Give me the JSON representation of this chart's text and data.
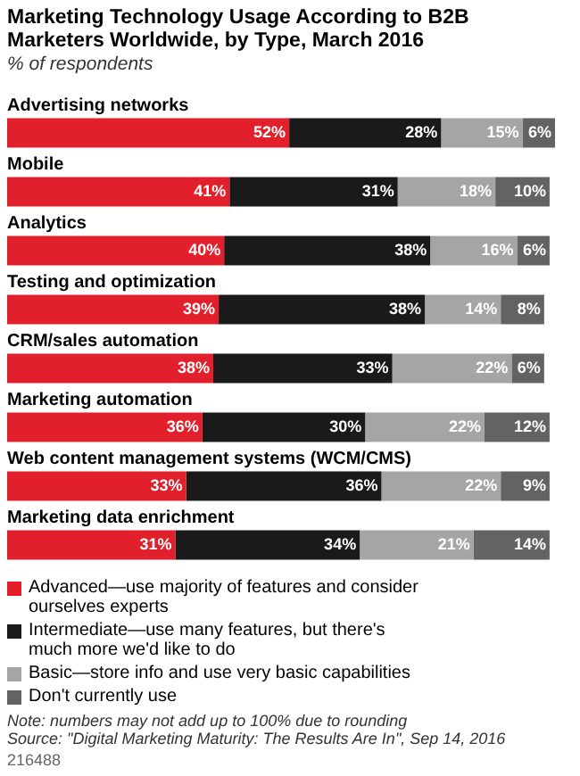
{
  "chart_data": {
    "type": "bar",
    "orientation": "horizontal",
    "stacked": true,
    "title": "Marketing Technology Usage According to B2B Marketers Worldwide, by Type, March 2016",
    "subtitle": "% of respondents",
    "categories": [
      "Advertising networks",
      "Mobile",
      "Analytics",
      "Testing and optimization",
      "CRM/sales automation",
      "Marketing automation",
      "Web content management systems (WCM/CMS)",
      "Marketing data enrichment"
    ],
    "series": [
      {
        "name": "Advanced—use majority of features and consider ourselves experts",
        "color": "#e2202c",
        "values": [
          52,
          41,
          40,
          39,
          38,
          36,
          33,
          31
        ],
        "value_labels": [
          "52%",
          "41%",
          "40%",
          "39%",
          "38%",
          "36%",
          "33%",
          "31%"
        ]
      },
      {
        "name": "Intermediate—use many features, but there's much more we'd like to do",
        "color": "#1a1a1a",
        "values": [
          28,
          31,
          38,
          38,
          33,
          30,
          36,
          34
        ],
        "value_labels": [
          "28%",
          "31%",
          "38%",
          "38%",
          "33%",
          "30%",
          "36%",
          "34%"
        ]
      },
      {
        "name": "Basic—store info and use very basic capabilities",
        "color": "#a5a5a5",
        "values": [
          15,
          18,
          16,
          14,
          22,
          22,
          22,
          21
        ],
        "value_labels": [
          "15%",
          "18%",
          "16%",
          "14%",
          "22%",
          "22%",
          "22%",
          "21%"
        ]
      },
      {
        "name": "Don't currently use",
        "color": "#636363",
        "values": [
          6,
          10,
          6,
          8,
          6,
          12,
          9,
          14
        ],
        "value_labels": [
          "6%",
          "10%",
          "6%",
          "8%",
          "6%",
          "12%",
          "9%",
          "14%"
        ]
      }
    ],
    "legend": "bottom",
    "annotations": [
      "Note: numbers may not add up to 100% due to rounding",
      "Source: \"Digital Marketing Maturity: The Results Are In\", Sep 14, 2016",
      "216488"
    ]
  }
}
